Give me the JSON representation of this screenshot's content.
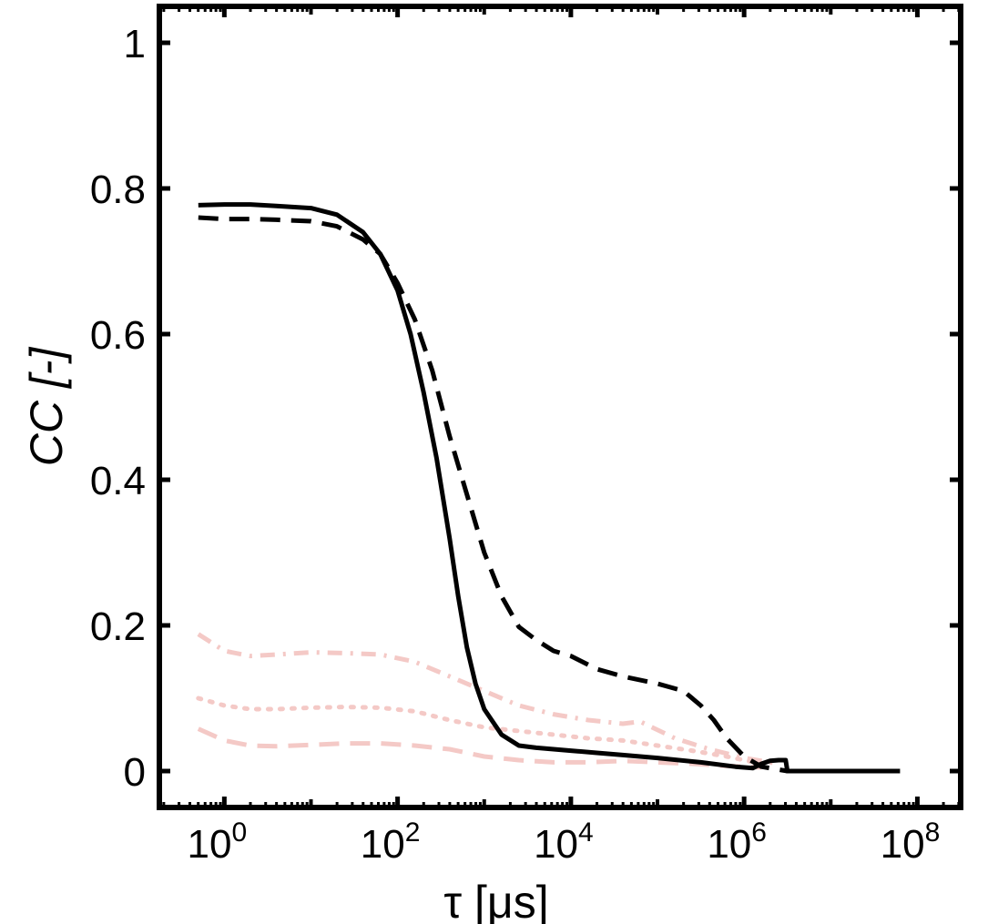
{
  "chart_data": {
    "type": "line",
    "title": "",
    "xlabel": "τ [μs]",
    "ylabel": "CC [-]",
    "xscale": "log",
    "xlim_exp": [
      -0.75,
      8.5
    ],
    "ylim": [
      -0.05,
      1.05
    ],
    "grid": false,
    "legend": "none",
    "x_ticks": [
      {
        "exp": 0,
        "base": "10",
        "sup": "0"
      },
      {
        "exp": 2,
        "base": "10",
        "sup": "2"
      },
      {
        "exp": 4,
        "base": "10",
        "sup": "4"
      },
      {
        "exp": 6,
        "base": "10",
        "sup": "6"
      },
      {
        "exp": 8,
        "base": "10",
        "sup": "8"
      }
    ],
    "y_ticks": [
      {
        "value": 0,
        "label": "0"
      },
      {
        "value": 0.2,
        "label": "0.2"
      },
      {
        "value": 0.4,
        "label": "0.4"
      },
      {
        "value": 0.6,
        "label": "0.6"
      },
      {
        "value": 0.8,
        "label": "0.8"
      },
      {
        "value": 1.0,
        "label": "1"
      }
    ],
    "series": [
      {
        "name": "solid",
        "style": "solid",
        "color": "#000000",
        "log_x": [
          -0.3,
          0,
          0.3,
          0.6,
          1.0,
          1.3,
          1.6,
          1.8,
          2.0,
          2.15,
          2.3,
          2.45,
          2.6,
          2.7,
          2.8,
          2.9,
          3.0,
          3.2,
          3.4,
          3.6,
          3.8,
          4.0,
          4.3,
          4.6,
          5.0,
          5.5,
          5.9,
          6.1,
          6.2,
          6.3,
          6.4,
          6.48,
          6.5,
          7.0,
          7.5,
          7.8
        ],
        "y": [
          0.777,
          0.778,
          0.778,
          0.776,
          0.773,
          0.764,
          0.74,
          0.71,
          0.66,
          0.6,
          0.52,
          0.43,
          0.32,
          0.24,
          0.17,
          0.12,
          0.085,
          0.05,
          0.035,
          0.032,
          0.03,
          0.028,
          0.025,
          0.022,
          0.018,
          0.012,
          0.006,
          0.004,
          0.01,
          0.014,
          0.015,
          0.015,
          0.0,
          0.0,
          0.0,
          0.0
        ]
      },
      {
        "name": "dashed",
        "style": "dashed",
        "color": "#000000",
        "log_x": [
          -0.3,
          0,
          0.3,
          0.6,
          1.0,
          1.3,
          1.6,
          1.8,
          2.0,
          2.2,
          2.4,
          2.6,
          2.8,
          3.0,
          3.2,
          3.4,
          3.6,
          3.8,
          4.0,
          4.3,
          4.6,
          5.0,
          5.3,
          5.5,
          5.65,
          5.8,
          6.0,
          6.2,
          6.5,
          7.0,
          7.5,
          7.8
        ],
        "y": [
          0.76,
          0.758,
          0.758,
          0.757,
          0.755,
          0.748,
          0.73,
          0.71,
          0.67,
          0.62,
          0.55,
          0.46,
          0.38,
          0.3,
          0.24,
          0.198,
          0.18,
          0.165,
          0.158,
          0.14,
          0.13,
          0.12,
          0.11,
          0.09,
          0.07,
          0.045,
          0.02,
          0.006,
          0.0,
          0.0,
          0.0,
          0.0
        ]
      },
      {
        "name": "faint-dashdot",
        "style": "dashdot",
        "color": "#f4c9c6",
        "log_x": [
          -0.3,
          0,
          0.3,
          0.6,
          1.0,
          1.4,
          1.8,
          2.2,
          2.6,
          3.0,
          3.4,
          3.8,
          4.2,
          4.6,
          4.8,
          5.2,
          5.6,
          6.0,
          6.4
        ],
        "y": [
          0.188,
          0.165,
          0.158,
          0.16,
          0.163,
          0.162,
          0.16,
          0.15,
          0.13,
          0.11,
          0.09,
          0.078,
          0.07,
          0.065,
          0.068,
          0.045,
          0.03,
          0.018,
          0.01
        ]
      },
      {
        "name": "faint-dotted",
        "style": "dotted",
        "color": "#f4c9c6",
        "log_x": [
          -0.3,
          0,
          0.3,
          0.6,
          1.0,
          1.4,
          1.8,
          2.2,
          2.6,
          3.0,
          3.4,
          3.8,
          4.2,
          4.6,
          5.0,
          5.4,
          5.8,
          6.2
        ],
        "y": [
          0.1,
          0.09,
          0.085,
          0.085,
          0.087,
          0.088,
          0.087,
          0.082,
          0.07,
          0.06,
          0.055,
          0.05,
          0.045,
          0.042,
          0.035,
          0.028,
          0.02,
          0.01
        ]
      },
      {
        "name": "faint-dashed",
        "style": "dashed",
        "color": "#f4c9c6",
        "log_x": [
          -0.3,
          0,
          0.3,
          0.6,
          1.0,
          1.4,
          1.8,
          2.2,
          2.6,
          3.0,
          3.4,
          3.8,
          4.2,
          4.6,
          5.0,
          5.4,
          5.8,
          6.2
        ],
        "y": [
          0.058,
          0.042,
          0.035,
          0.034,
          0.036,
          0.038,
          0.038,
          0.035,
          0.03,
          0.02,
          0.015,
          0.012,
          0.012,
          0.014,
          0.012,
          0.01,
          0.007,
          0.005
        ]
      }
    ]
  }
}
